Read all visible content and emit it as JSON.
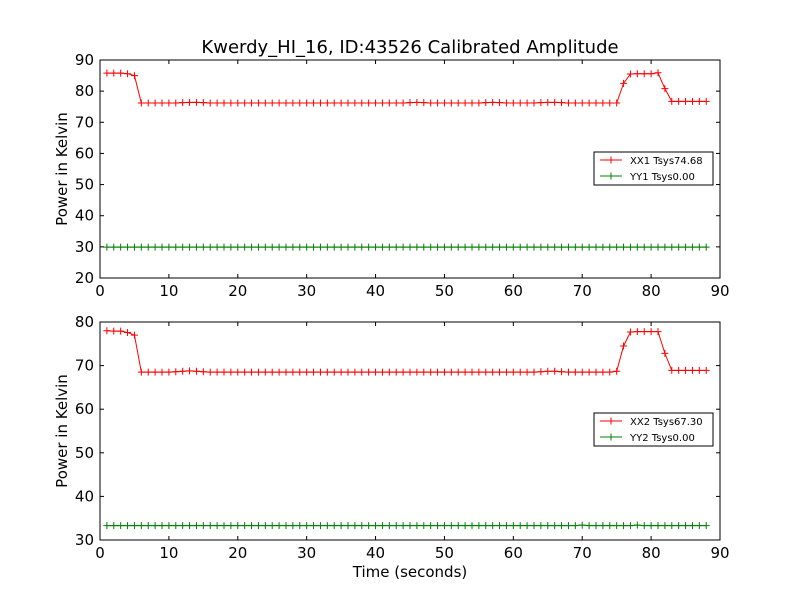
{
  "title": "Kwerdy_HI_16, ID:43526 Calibrated Amplitude",
  "xlabel": "Time (seconds)",
  "colors": {
    "xx": "#ff0000",
    "yy": "#008000"
  },
  "chart_data": [
    {
      "type": "line",
      "ylabel": "Power in Kelvin",
      "xlim": [
        0,
        90
      ],
      "ylim": [
        20,
        90
      ],
      "xticks": [
        0,
        10,
        20,
        30,
        40,
        50,
        60,
        70,
        80,
        90
      ],
      "yticks": [
        20,
        30,
        40,
        50,
        60,
        70,
        80,
        90
      ],
      "grid": false,
      "legend": "center-right",
      "x": [
        1,
        2,
        3,
        4,
        5,
        6,
        7,
        8,
        9,
        10,
        11,
        12,
        13,
        14,
        15,
        16,
        17,
        18,
        19,
        20,
        21,
        22,
        23,
        24,
        25,
        26,
        27,
        28,
        29,
        30,
        31,
        32,
        33,
        34,
        35,
        36,
        37,
        38,
        39,
        40,
        41,
        42,
        43,
        44,
        45,
        46,
        47,
        48,
        49,
        50,
        51,
        52,
        53,
        54,
        55,
        56,
        57,
        58,
        59,
        60,
        61,
        62,
        63,
        64,
        65,
        66,
        67,
        68,
        69,
        70,
        71,
        72,
        73,
        74,
        75,
        76,
        77,
        78,
        79,
        80,
        81,
        82,
        83,
        84,
        85,
        86,
        87,
        88
      ],
      "series": [
        {
          "name": "XX1 Tsys74.68",
          "color": "#ff0000",
          "values": [
            85.8,
            85.8,
            85.8,
            85.6,
            85.0,
            76.2,
            76.2,
            76.2,
            76.2,
            76.2,
            76.2,
            76.3,
            76.4,
            76.4,
            76.3,
            76.2,
            76.2,
            76.2,
            76.2,
            76.2,
            76.2,
            76.2,
            76.2,
            76.2,
            76.2,
            76.2,
            76.2,
            76.2,
            76.2,
            76.2,
            76.2,
            76.2,
            76.2,
            76.2,
            76.2,
            76.2,
            76.2,
            76.2,
            76.2,
            76.2,
            76.2,
            76.2,
            76.2,
            76.2,
            76.3,
            76.4,
            76.3,
            76.2,
            76.2,
            76.2,
            76.2,
            76.2,
            76.2,
            76.2,
            76.2,
            76.3,
            76.4,
            76.3,
            76.2,
            76.2,
            76.2,
            76.2,
            76.2,
            76.3,
            76.4,
            76.4,
            76.3,
            76.2,
            76.2,
            76.2,
            76.2,
            76.2,
            76.2,
            76.2,
            76.2,
            82.5,
            85.5,
            85.6,
            85.6,
            85.6,
            85.9,
            80.8,
            76.7,
            76.7,
            76.7,
            76.7,
            76.7,
            76.7
          ]
        },
        {
          "name": "YY1 Tsys0.00",
          "color": "#008000",
          "values": [
            29.9,
            29.9,
            29.9,
            29.9,
            29.9,
            29.9,
            29.9,
            29.9,
            29.9,
            29.9,
            29.9,
            29.9,
            29.9,
            29.9,
            29.9,
            29.9,
            29.9,
            29.9,
            29.9,
            29.9,
            29.9,
            29.9,
            29.9,
            29.9,
            29.9,
            29.9,
            29.9,
            29.9,
            29.9,
            29.9,
            29.9,
            29.9,
            29.9,
            29.9,
            29.9,
            29.9,
            29.9,
            29.9,
            29.9,
            29.9,
            29.9,
            29.9,
            29.9,
            29.9,
            29.9,
            29.9,
            29.9,
            29.9,
            29.9,
            29.9,
            29.9,
            29.9,
            29.9,
            29.9,
            29.9,
            29.9,
            29.9,
            29.9,
            29.9,
            29.9,
            29.9,
            29.9,
            29.9,
            29.9,
            29.9,
            29.9,
            29.9,
            29.9,
            29.9,
            29.9,
            29.9,
            29.9,
            29.9,
            29.9,
            29.9,
            29.9,
            29.9,
            29.9,
            29.9,
            29.9,
            29.9,
            29.9,
            29.9,
            29.9,
            29.9,
            29.9,
            29.9,
            29.9
          ]
        }
      ]
    },
    {
      "type": "line",
      "ylabel": "Power in Kelvin",
      "xlim": [
        0,
        90
      ],
      "ylim": [
        30,
        80
      ],
      "xticks": [
        0,
        10,
        20,
        30,
        40,
        50,
        60,
        70,
        80,
        90
      ],
      "yticks": [
        30,
        40,
        50,
        60,
        70,
        80
      ],
      "grid": false,
      "legend": "center-right",
      "x": [
        1,
        2,
        3,
        4,
        5,
        6,
        7,
        8,
        9,
        10,
        11,
        12,
        13,
        14,
        15,
        16,
        17,
        18,
        19,
        20,
        21,
        22,
        23,
        24,
        25,
        26,
        27,
        28,
        29,
        30,
        31,
        32,
        33,
        34,
        35,
        36,
        37,
        38,
        39,
        40,
        41,
        42,
        43,
        44,
        45,
        46,
        47,
        48,
        49,
        50,
        51,
        52,
        53,
        54,
        55,
        56,
        57,
        58,
        59,
        60,
        61,
        62,
        63,
        64,
        65,
        66,
        67,
        68,
        69,
        70,
        71,
        72,
        73,
        74,
        75,
        76,
        77,
        78,
        79,
        80,
        81,
        82,
        83,
        84,
        85,
        86,
        87,
        88
      ],
      "series": [
        {
          "name": "XX2 Tsys67.30",
          "color": "#ff0000",
          "values": [
            78.0,
            77.9,
            77.9,
            77.6,
            77.0,
            68.5,
            68.5,
            68.5,
            68.5,
            68.5,
            68.6,
            68.7,
            68.8,
            68.7,
            68.6,
            68.5,
            68.5,
            68.5,
            68.5,
            68.5,
            68.5,
            68.5,
            68.5,
            68.5,
            68.5,
            68.5,
            68.5,
            68.5,
            68.5,
            68.5,
            68.5,
            68.5,
            68.5,
            68.5,
            68.5,
            68.5,
            68.5,
            68.5,
            68.5,
            68.5,
            68.5,
            68.5,
            68.5,
            68.5,
            68.5,
            68.5,
            68.5,
            68.5,
            68.5,
            68.5,
            68.5,
            68.5,
            68.5,
            68.5,
            68.5,
            68.5,
            68.5,
            68.5,
            68.5,
            68.5,
            68.5,
            68.5,
            68.5,
            68.6,
            68.7,
            68.7,
            68.6,
            68.5,
            68.5,
            68.5,
            68.5,
            68.5,
            68.5,
            68.5,
            68.7,
            74.5,
            77.7,
            77.8,
            77.8,
            77.8,
            77.8,
            72.8,
            68.9,
            68.9,
            68.9,
            68.9,
            68.9,
            68.9
          ]
        },
        {
          "name": "YY2 Tsys0.00",
          "color": "#008000",
          "values": [
            33.3,
            33.3,
            33.3,
            33.3,
            33.3,
            33.3,
            33.3,
            33.3,
            33.3,
            33.3,
            33.3,
            33.3,
            33.3,
            33.3,
            33.3,
            33.3,
            33.3,
            33.3,
            33.3,
            33.3,
            33.3,
            33.3,
            33.3,
            33.3,
            33.3,
            33.3,
            33.3,
            33.3,
            33.3,
            33.3,
            33.3,
            33.3,
            33.3,
            33.3,
            33.3,
            33.3,
            33.3,
            33.3,
            33.3,
            33.3,
            33.3,
            33.3,
            33.3,
            33.3,
            33.3,
            33.3,
            33.3,
            33.3,
            33.3,
            33.3,
            33.3,
            33.3,
            33.3,
            33.3,
            33.3,
            33.3,
            33.3,
            33.3,
            33.3,
            33.3,
            33.3,
            33.3,
            33.3,
            33.3,
            33.3,
            33.3,
            33.3,
            33.3,
            33.3,
            33.4,
            33.3,
            33.3,
            33.3,
            33.3,
            33.3,
            33.3,
            33.3,
            33.4,
            33.3,
            33.3,
            33.3,
            33.3,
            33.3,
            33.3,
            33.3,
            33.3,
            33.3,
            33.3
          ]
        }
      ]
    }
  ]
}
